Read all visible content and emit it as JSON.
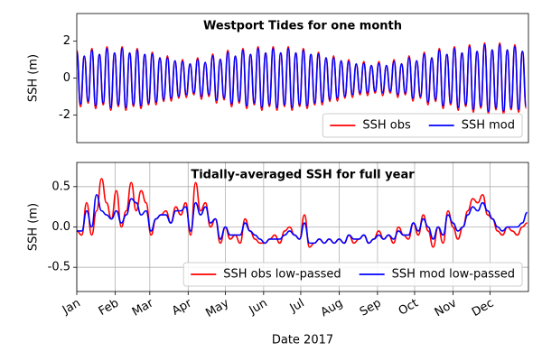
{
  "chart_data": [
    {
      "type": "line",
      "title": "Westport Tides for one month",
      "ylabel": "SSH (m)",
      "x": [
        0,
        0.25,
        0.5,
        0.75,
        1,
        1.25,
        1.5,
        1.75,
        2,
        2.25,
        2.5,
        2.75,
        3,
        3.25,
        3.5,
        3.75,
        4,
        4.25,
        4.5,
        4.75,
        5,
        5.25,
        5.5,
        5.75,
        6,
        6.25,
        6.5,
        6.75,
        7,
        7.25,
        7.5,
        7.75,
        8,
        8.25,
        8.5,
        8.75,
        9,
        9.25,
        9.5,
        9.75,
        10,
        10.25,
        10.5,
        10.75,
        11,
        11.25,
        11.5,
        11.75,
        12,
        12.25,
        12.5,
        12.75,
        13,
        13.25,
        13.5,
        13.75,
        14,
        14.25,
        14.5,
        14.75,
        15,
        15.25,
        15.5,
        15.75,
        16,
        16.25,
        16.5,
        16.75,
        17,
        17.25,
        17.5,
        17.75,
        18,
        18.25,
        18.5,
        18.75,
        19,
        19.25,
        19.5,
        19.75,
        20,
        20.25,
        20.5,
        20.75,
        21,
        21.25,
        21.5,
        21.75,
        22,
        22.25,
        22.5,
        22.75,
        23,
        23.25,
        23.5,
        23.75,
        24,
        24.25,
        24.5,
        24.75,
        25,
        25.25,
        25.5,
        25.75,
        26,
        26.25,
        26.5,
        26.75,
        27,
        27.25,
        27.5,
        27.75,
        28,
        28.25,
        28.5,
        28.75,
        29,
        29.25,
        29.5,
        29.75
      ],
      "series": [
        {
          "name": "SSH obs",
          "color": "#ff0000",
          "values": [
            1.5,
            -1.55,
            1.19,
            -1.36,
            1.6,
            -1.65,
            1.28,
            -1.45,
            1.7,
            -1.75,
            1.36,
            -1.54,
            1.7,
            -1.75,
            1.36,
            -1.54,
            1.6,
            -1.65,
            1.28,
            -1.45,
            1.4,
            -1.45,
            1.1,
            -1.27,
            1.2,
            -1.25,
            0.94,
            -1.09,
            1.0,
            -1.05,
            0.77,
            -0.91,
            1.1,
            -1.15,
            0.85,
            -1.0,
            1.3,
            -1.35,
            1.02,
            -1.18,
            1.5,
            -1.55,
            1.19,
            -1.36,
            1.6,
            -1.65,
            1.28,
            -1.45,
            1.7,
            -1.75,
            1.36,
            -1.54,
            1.7,
            -1.75,
            1.36,
            -1.54,
            1.7,
            -1.75,
            1.36,
            -1.54,
            1.6,
            -1.65,
            1.28,
            -1.45,
            1.4,
            -1.45,
            1.1,
            -1.27,
            1.2,
            -1.25,
            0.94,
            -1.09,
            1.0,
            -1.05,
            0.77,
            -0.91,
            0.9,
            -0.95,
            0.68,
            -0.82,
            0.9,
            -0.95,
            0.68,
            -0.82,
            1.0,
            -1.05,
            0.77,
            -0.91,
            1.2,
            -1.25,
            0.94,
            -1.09,
            1.4,
            -1.45,
            1.1,
            -1.27,
            1.6,
            -1.65,
            1.28,
            -1.45,
            1.7,
            -1.75,
            1.36,
            -1.54,
            1.8,
            -1.85,
            1.45,
            -1.63,
            1.9,
            -1.95,
            1.53,
            -1.72,
            1.9,
            -1.95,
            1.53,
            -1.72,
            1.8,
            -1.85,
            1.45,
            -1.63
          ]
        },
        {
          "name": "SSH mod",
          "color": "#0000ff",
          "values": [
            1.4,
            -1.4,
            1.19,
            -1.26,
            1.5,
            -1.5,
            1.28,
            -1.35,
            1.6,
            -1.6,
            1.36,
            -1.44,
            1.6,
            -1.6,
            1.36,
            -1.44,
            1.5,
            -1.5,
            1.28,
            -1.35,
            1.3,
            -1.3,
            1.1,
            -1.17,
            1.1,
            -1.1,
            0.94,
            -0.99,
            0.9,
            -0.9,
            0.77,
            -0.81,
            1.0,
            -1.0,
            0.85,
            -0.9,
            1.2,
            -1.2,
            1.02,
            -1.08,
            1.4,
            -1.4,
            1.19,
            -1.26,
            1.5,
            -1.5,
            1.28,
            -1.35,
            1.6,
            -1.6,
            1.36,
            -1.44,
            1.6,
            -1.6,
            1.36,
            -1.44,
            1.6,
            -1.6,
            1.36,
            -1.44,
            1.5,
            -1.5,
            1.28,
            -1.35,
            1.3,
            -1.3,
            1.1,
            -1.17,
            1.1,
            -1.1,
            0.94,
            -0.99,
            0.9,
            -0.9,
            0.77,
            -0.81,
            0.8,
            -0.8,
            0.68,
            -0.72,
            0.8,
            -0.8,
            0.68,
            -0.72,
            0.9,
            -0.9,
            0.77,
            -0.81,
            1.1,
            -1.1,
            0.94,
            -0.99,
            1.3,
            -1.3,
            1.1,
            -1.17,
            1.5,
            -1.5,
            1.28,
            -1.35,
            1.6,
            -1.6,
            1.36,
            -1.44,
            1.7,
            -1.7,
            1.45,
            -1.53,
            1.8,
            -1.8,
            1.53,
            -1.62,
            1.8,
            -1.8,
            1.53,
            -1.62,
            1.7,
            -1.7,
            1.45,
            -1.53
          ]
        }
      ],
      "xlim": [
        0,
        29.9
      ],
      "ylim": [
        -3.5,
        3.5
      ],
      "yticks": [
        -2,
        0,
        2
      ],
      "grid": false,
      "legend": "lower right"
    },
    {
      "type": "line",
      "title": "Tidally-averaged SSH for full year",
      "ylabel": "SSH (m)",
      "xlabel": "Date 2017",
      "x": [
        0,
        4,
        8,
        12,
        16,
        20,
        24,
        28,
        32,
        36,
        40,
        44,
        48,
        52,
        56,
        60,
        64,
        68,
        72,
        76,
        80,
        84,
        88,
        92,
        96,
        100,
        104,
        108,
        112,
        116,
        120,
        124,
        128,
        132,
        136,
        140,
        144,
        148,
        152,
        156,
        160,
        164,
        168,
        172,
        176,
        180,
        184,
        188,
        192,
        196,
        200,
        204,
        208,
        212,
        216,
        220,
        224,
        228,
        232,
        236,
        240,
        244,
        248,
        252,
        256,
        260,
        264,
        268,
        272,
        276,
        280,
        284,
        288,
        292,
        296,
        300,
        304,
        308,
        312,
        316,
        320,
        324,
        328,
        332,
        336,
        340,
        344,
        348,
        352,
        356,
        360,
        364
      ],
      "series": [
        {
          "name": "SSH obs low-passed",
          "color": "#ff0000",
          "values": [
            -0.05,
            -0.1,
            0.3,
            -0.1,
            0.2,
            0.6,
            0.3,
            0.1,
            0.45,
            0.0,
            0.2,
            0.55,
            0.2,
            0.45,
            0.3,
            -0.1,
            0.1,
            0.15,
            0.2,
            0.05,
            0.25,
            0.15,
            0.3,
            -0.1,
            0.55,
            0.2,
            0.3,
            0.0,
            0.1,
            -0.2,
            0.0,
            -0.15,
            -0.1,
            -0.2,
            0.1,
            -0.05,
            -0.15,
            -0.2,
            -0.2,
            -0.15,
            -0.1,
            -0.2,
            -0.05,
            0.0,
            -0.1,
            -0.15,
            0.15,
            -0.25,
            -0.2,
            -0.15,
            -0.2,
            -0.15,
            -0.2,
            -0.15,
            -0.2,
            -0.1,
            -0.2,
            -0.15,
            -0.1,
            -0.2,
            -0.15,
            -0.05,
            -0.15,
            -0.1,
            -0.2,
            0.0,
            -0.1,
            -0.15,
            0.05,
            -0.1,
            0.15,
            -0.05,
            -0.25,
            0.0,
            -0.2,
            0.2,
            0.0,
            -0.15,
            0.0,
            0.2,
            0.35,
            0.3,
            0.4,
            0.15,
            0.1,
            -0.05,
            -0.1,
            0.0,
            -0.05,
            -0.1,
            0.0,
            0.05
          ]
        },
        {
          "name": "SSH mod low-passed",
          "color": "#0000ff",
          "values": [
            -0.05,
            -0.05,
            0.2,
            0.0,
            0.4,
            0.2,
            0.15,
            0.1,
            0.2,
            0.05,
            0.15,
            0.35,
            0.3,
            0.15,
            0.2,
            -0.05,
            0.1,
            0.15,
            0.15,
            0.05,
            0.2,
            0.2,
            0.25,
            -0.05,
            0.3,
            0.15,
            0.25,
            0.05,
            0.1,
            -0.15,
            0.0,
            -0.1,
            -0.1,
            -0.1,
            0.05,
            -0.05,
            -0.1,
            -0.15,
            -0.2,
            -0.15,
            -0.15,
            -0.15,
            -0.1,
            -0.05,
            -0.1,
            -0.15,
            0.05,
            -0.2,
            -0.2,
            -0.15,
            -0.2,
            -0.15,
            -0.2,
            -0.15,
            -0.2,
            -0.1,
            -0.15,
            -0.15,
            -0.1,
            -0.2,
            -0.15,
            -0.1,
            -0.15,
            -0.1,
            -0.15,
            -0.05,
            -0.1,
            -0.1,
            0.05,
            -0.05,
            0.1,
            0.0,
            -0.15,
            0.0,
            -0.1,
            0.15,
            0.05,
            -0.05,
            0.0,
            0.15,
            0.25,
            0.2,
            0.3,
            0.2,
            0.1,
            0.0,
            -0.05,
            0.0,
            0.0,
            0.0,
            0.05,
            0.18
          ]
        }
      ],
      "xlim": [
        0,
        365
      ],
      "xticks": [
        {
          "value": 0,
          "label": "Jan"
        },
        {
          "value": 31,
          "label": "Feb"
        },
        {
          "value": 59,
          "label": "Mar"
        },
        {
          "value": 90,
          "label": "Apr"
        },
        {
          "value": 120,
          "label": "May"
        },
        {
          "value": 151,
          "label": "Jun"
        },
        {
          "value": 181,
          "label": "Jul"
        },
        {
          "value": 212,
          "label": "Aug"
        },
        {
          "value": 243,
          "label": "Sep"
        },
        {
          "value": 273,
          "label": "Oct"
        },
        {
          "value": 304,
          "label": "Nov"
        },
        {
          "value": 334,
          "label": "Dec"
        }
      ],
      "ylim": [
        -0.8,
        0.8
      ],
      "yticks": [
        -0.5,
        0.0,
        0.5
      ],
      "grid": true,
      "legend": "lower right"
    }
  ]
}
